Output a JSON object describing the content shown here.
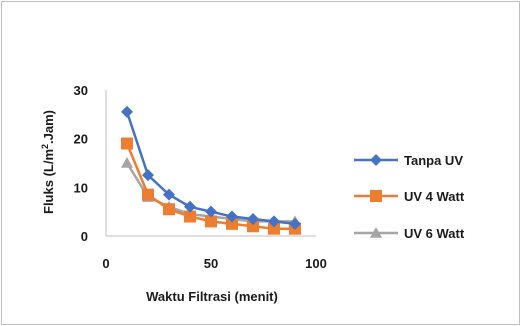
{
  "chart_data": {
    "type": "line",
    "xlabel": "Waktu Filtrasi (menit)",
    "ylabel_parts": {
      "pre": "Fluks (L/m",
      "sup": "2",
      "post": ".Jam)"
    },
    "xlim": [
      0,
      100
    ],
    "ylim": [
      0,
      30
    ],
    "xticks": [
      0,
      50,
      100
    ],
    "yticks": [
      0,
      10,
      20,
      30
    ],
    "grid": false,
    "legend_position": "right",
    "x": [
      10,
      20,
      30,
      40,
      50,
      60,
      70,
      80,
      90
    ],
    "series": [
      {
        "name": "Tanpa UV",
        "color": "#4472C4",
        "marker": "diamond",
        "values": [
          25.5,
          12.5,
          8.5,
          6,
          5,
          4,
          3.5,
          3,
          2.5
        ]
      },
      {
        "name": "UV 4 Watt",
        "color": "#ED7D31",
        "marker": "square",
        "values": [
          19,
          8.5,
          5.5,
          4,
          3,
          2.5,
          2,
          1.5,
          1.5
        ]
      },
      {
        "name": "UV 6 Watt",
        "color": "#A5A5A5",
        "marker": "triangle",
        "values": [
          15,
          8,
          6,
          4.5,
          4,
          3.5,
          3,
          3,
          3
        ]
      }
    ]
  }
}
